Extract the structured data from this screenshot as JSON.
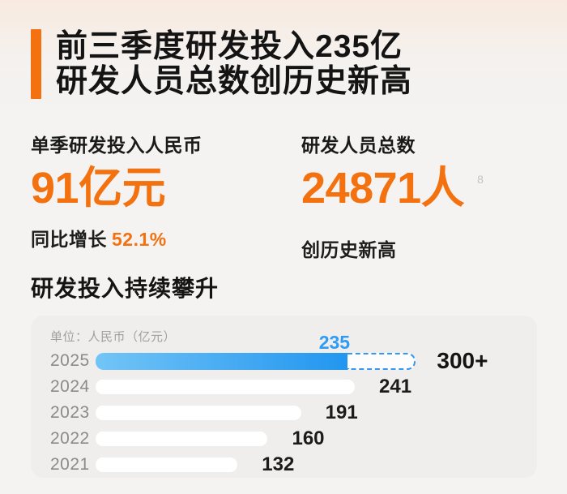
{
  "accent_color": "#F3710F",
  "highlight_color": "#2E9BF5",
  "header": {
    "title_line1": "前三季度研发投入235亿",
    "title_line2": "研发人员总数创历史新高"
  },
  "stats": [
    {
      "label": "单季研发投入人民币",
      "value": "91亿元",
      "note_prefix": "同比增长",
      "note_highlight": "52.1%"
    },
    {
      "label": "研发人员总数",
      "value": "24871人",
      "superscript": "8",
      "note": "创历史新高"
    }
  ],
  "section_title": "研发投入持续攀升",
  "chart_data": {
    "type": "bar",
    "orientation": "horizontal",
    "title": "研发投入持续攀升",
    "unit_label": "单位：人民币（亿元）",
    "categories": [
      "2025",
      "2024",
      "2023",
      "2022",
      "2021"
    ],
    "values": [
      235,
      241,
      191,
      160,
      132
    ],
    "value_labels": [
      "235",
      "241",
      "191",
      "160",
      "132"
    ],
    "highlight": {
      "category": "2025",
      "index": 0,
      "value_label": "235",
      "projection_value": 300,
      "projection_label": "300+"
    },
    "xlim": [
      0,
      330
    ],
    "grid": false,
    "legend": false
  }
}
